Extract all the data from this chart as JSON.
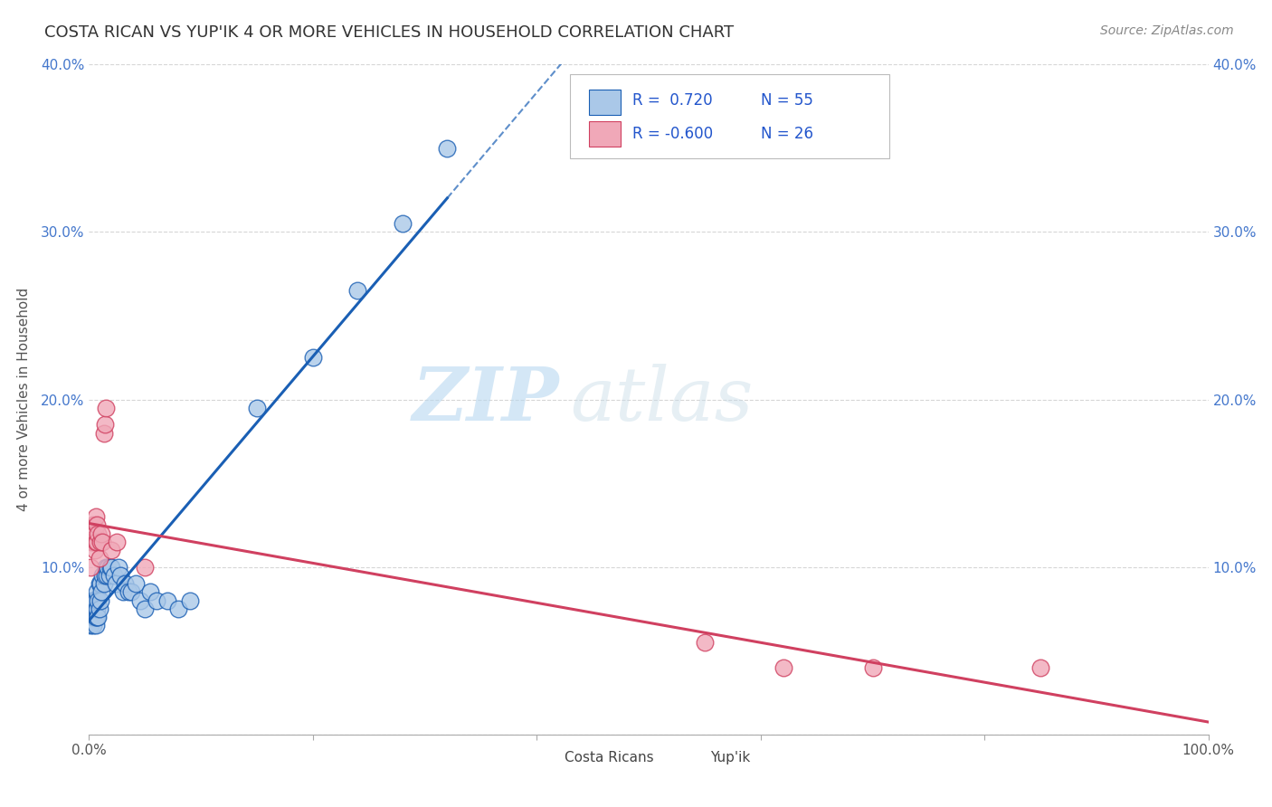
{
  "title": "COSTA RICAN VS YUP'IK 4 OR MORE VEHICLES IN HOUSEHOLD CORRELATION CHART",
  "source": "Source: ZipAtlas.com",
  "ylabel_label": "4 or more Vehicles in Household",
  "xlim": [
    0,
    1.0
  ],
  "ylim": [
    0,
    0.4
  ],
  "legend_r1": "R =  0.720",
  "legend_n1": "N = 55",
  "legend_r2": "R = -0.600",
  "legend_n2": "N = 26",
  "costa_rican_color": "#aac8e8",
  "yupik_color": "#f0a8b8",
  "line_costa_rican_color": "#1a5fb4",
  "line_yupik_color": "#d04060",
  "watermark_zip": "ZIP",
  "watermark_atlas": "atlas",
  "cr_x": [
    0.001,
    0.002,
    0.002,
    0.003,
    0.003,
    0.003,
    0.004,
    0.004,
    0.004,
    0.005,
    0.005,
    0.005,
    0.006,
    0.006,
    0.006,
    0.007,
    0.007,
    0.007,
    0.008,
    0.008,
    0.009,
    0.009,
    0.01,
    0.01,
    0.011,
    0.012,
    0.013,
    0.014,
    0.015,
    0.016,
    0.017,
    0.018,
    0.019,
    0.02,
    0.022,
    0.024,
    0.026,
    0.028,
    0.03,
    0.032,
    0.035,
    0.038,
    0.042,
    0.046,
    0.05,
    0.055,
    0.06,
    0.07,
    0.08,
    0.09,
    0.15,
    0.2,
    0.24,
    0.28,
    0.32
  ],
  "cr_y": [
    0.065,
    0.075,
    0.08,
    0.07,
    0.075,
    0.08,
    0.065,
    0.07,
    0.08,
    0.07,
    0.075,
    0.08,
    0.065,
    0.07,
    0.08,
    0.07,
    0.075,
    0.085,
    0.07,
    0.08,
    0.075,
    0.09,
    0.08,
    0.09,
    0.085,
    0.095,
    0.09,
    0.095,
    0.1,
    0.095,
    0.1,
    0.095,
    0.1,
    0.1,
    0.095,
    0.09,
    0.1,
    0.095,
    0.085,
    0.09,
    0.085,
    0.085,
    0.09,
    0.08,
    0.075,
    0.085,
    0.08,
    0.08,
    0.075,
    0.08,
    0.195,
    0.225,
    0.265,
    0.305,
    0.35
  ],
  "yp_x": [
    0.001,
    0.002,
    0.003,
    0.004,
    0.004,
    0.005,
    0.005,
    0.006,
    0.006,
    0.007,
    0.007,
    0.008,
    0.009,
    0.01,
    0.011,
    0.012,
    0.013,
    0.014,
    0.015,
    0.02,
    0.025,
    0.05,
    0.55,
    0.62,
    0.7,
    0.85
  ],
  "yp_y": [
    0.1,
    0.115,
    0.12,
    0.115,
    0.125,
    0.11,
    0.12,
    0.115,
    0.13,
    0.115,
    0.125,
    0.12,
    0.105,
    0.115,
    0.12,
    0.115,
    0.18,
    0.185,
    0.195,
    0.11,
    0.115,
    0.1,
    0.055,
    0.04,
    0.04,
    0.04
  ]
}
